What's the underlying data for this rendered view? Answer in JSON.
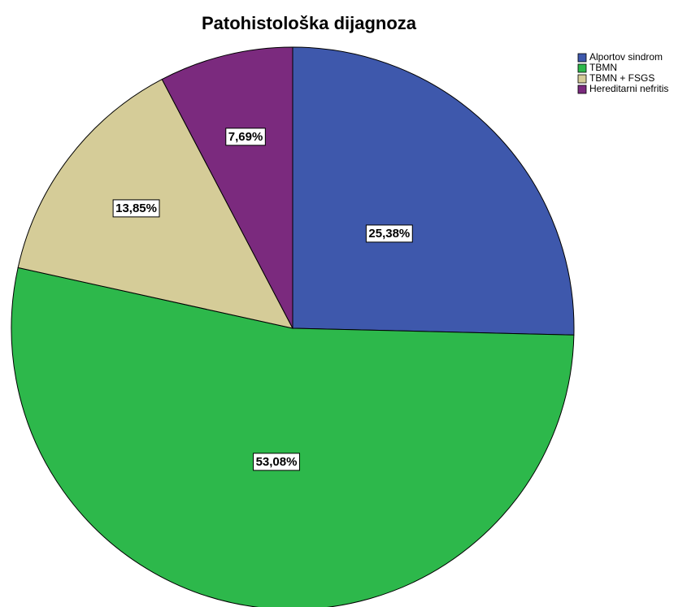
{
  "chart_data": {
    "type": "pie",
    "title": "Patohistološka dijagnoza",
    "categories": [
      "Alportov sindrom",
      "TBMN",
      "TBMN + FSGS",
      "Hereditarni nefritis"
    ],
    "values": [
      25.38,
      53.08,
      13.85,
      7.69
    ],
    "value_labels": [
      "25,38%",
      "53,08%",
      "13,85%",
      "7,69%"
    ],
    "colors": [
      "#3e58ac",
      "#2db84b",
      "#d5cc98",
      "#7b2a7e"
    ],
    "legend": "top-right"
  }
}
